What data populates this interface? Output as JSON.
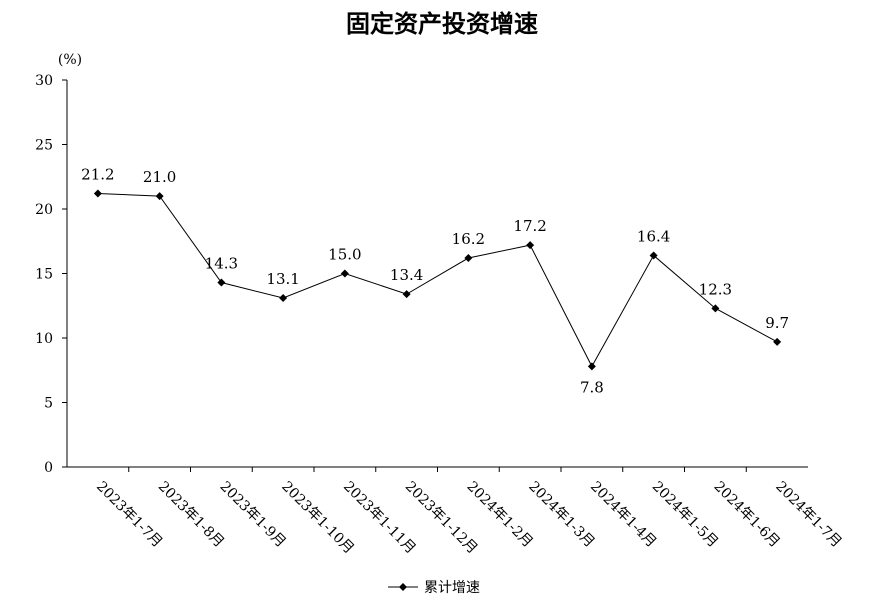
{
  "chart_data": {
    "type": "line",
    "title": "固定资产投资增速",
    "ylabel": "(%)",
    "xlabel": "",
    "ylim": [
      0,
      30
    ],
    "yticks": [
      0,
      5,
      10,
      15,
      20,
      25,
      30
    ],
    "grid": false,
    "legend_position": "bottom",
    "categories": [
      "2023年1-7月",
      "2023年1-8月",
      "2023年1-9月",
      "2023年1-10月",
      "2023年1-11月",
      "2023年1-12月",
      "2024年1-2月",
      "2024年1-3月",
      "2024年1-4月",
      "2024年1-5月",
      "2024年1-6月",
      "2024年1-7月"
    ],
    "series": [
      {
        "name": "累计增速",
        "values": [
          21.2,
          21.0,
          14.3,
          13.1,
          15.0,
          13.4,
          16.2,
          17.2,
          7.8,
          16.4,
          12.3,
          9.7
        ],
        "labels": [
          "21.2",
          "21.0",
          "14.3",
          "13.1",
          "15.0",
          "13.4",
          "16.2",
          "17.2",
          "7.8",
          "16.4",
          "12.3",
          "9.7"
        ],
        "color": "#000000"
      }
    ]
  }
}
